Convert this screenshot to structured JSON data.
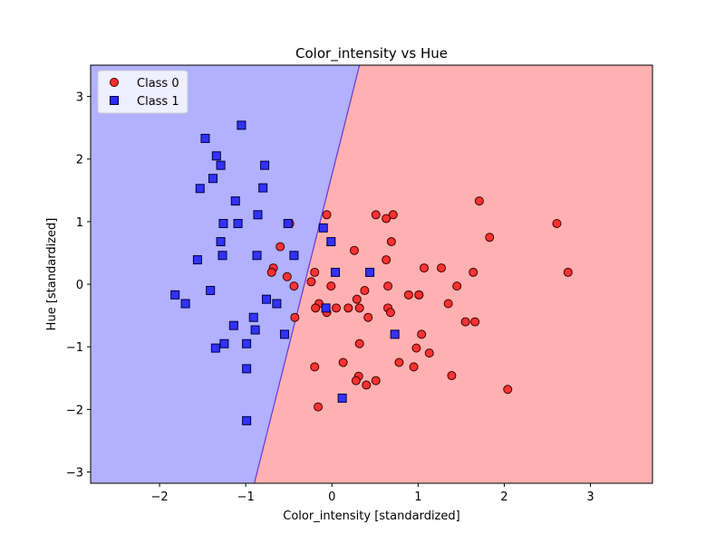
{
  "chart_data": {
    "type": "scatter",
    "title": "Color_intensity vs Hue",
    "xlabel": "Color_intensity [standardized]",
    "ylabel": "Hue [standardized]",
    "xlim": [
      -2.8,
      3.72
    ],
    "ylim": [
      -3.18,
      3.5
    ],
    "xticks": [
      -2,
      -1,
      0,
      1,
      2,
      3
    ],
    "yticks": [
      -3,
      -2,
      -1,
      0,
      1,
      2,
      3
    ],
    "xtick_labels": [
      "−2",
      "−1",
      "0",
      "1",
      "2",
      "3"
    ],
    "ytick_labels": [
      "−3",
      "−2",
      "−1",
      "0",
      "1",
      "2",
      "3"
    ],
    "grid": false,
    "legend_position": "upper-left",
    "decision_boundary": {
      "top": [
        0.32,
        3.5
      ],
      "bottom": [
        -0.9,
        -3.18
      ],
      "class1_region": "left",
      "class0_region": "right",
      "class0_color": "#ffb1b1",
      "class1_color": "#b1b1ff"
    },
    "series": [
      {
        "name": "Class 0",
        "marker": "circle",
        "color": "#ff2b2b",
        "edge_color": "#3a0000",
        "points": [
          [
            -0.06,
            1.11
          ],
          [
            0.51,
            1.11
          ],
          [
            0.63,
            1.05
          ],
          [
            0.71,
            1.11
          ],
          [
            1.71,
            1.33
          ],
          [
            2.61,
            0.97
          ],
          [
            1.83,
            0.75
          ],
          [
            0.69,
            0.68
          ],
          [
            -0.49,
            0.97
          ],
          [
            -0.6,
            0.6
          ],
          [
            0.26,
            0.54
          ],
          [
            0.63,
            0.39
          ],
          [
            1.07,
            0.26
          ],
          [
            1.27,
            0.26
          ],
          [
            1.64,
            0.19
          ],
          [
            2.74,
            0.19
          ],
          [
            -0.2,
            0.19
          ],
          [
            -0.68,
            0.26
          ],
          [
            -0.7,
            0.19
          ],
          [
            -0.52,
            0.12
          ],
          [
            -0.24,
            0.04
          ],
          [
            -0.44,
            -0.03
          ],
          [
            -0.01,
            -0.03
          ],
          [
            0.38,
            -0.1
          ],
          [
            0.65,
            -0.03
          ],
          [
            1.45,
            -0.03
          ],
          [
            0.89,
            -0.17
          ],
          [
            1.01,
            -0.17
          ],
          [
            1.01,
            -0.17
          ],
          [
            0.29,
            -0.24
          ],
          [
            1.35,
            -0.31
          ],
          [
            -0.15,
            -0.31
          ],
          [
            -0.19,
            -0.38
          ],
          [
            0.05,
            -0.38
          ],
          [
            0.19,
            -0.38
          ],
          [
            0.32,
            -0.38
          ],
          [
            0.65,
            -0.38
          ],
          [
            -0.06,
            -0.45
          ],
          [
            0.68,
            -0.45
          ],
          [
            0.42,
            -0.53
          ],
          [
            -0.43,
            -0.53
          ],
          [
            1.55,
            -0.6
          ],
          [
            1.66,
            -0.6
          ],
          [
            1.04,
            -0.8
          ],
          [
            0.32,
            -0.95
          ],
          [
            0.98,
            -1.02
          ],
          [
            1.13,
            -1.1
          ],
          [
            0.78,
            -1.25
          ],
          [
            0.13,
            -1.25
          ],
          [
            0.95,
            -1.32
          ],
          [
            -0.2,
            -1.32
          ],
          [
            1.39,
            -1.46
          ],
          [
            0.31,
            -1.47
          ],
          [
            0.28,
            -1.54
          ],
          [
            0.51,
            -1.54
          ],
          [
            0.4,
            -1.61
          ],
          [
            2.04,
            -1.68
          ],
          [
            -0.16,
            -1.96
          ]
        ]
      },
      {
        "name": "Class 1",
        "marker": "square",
        "color": "#2b2bff",
        "edge_color": "#00003a",
        "points": [
          [
            -1.05,
            2.54
          ],
          [
            -1.47,
            2.33
          ],
          [
            -1.34,
            2.05
          ],
          [
            -1.29,
            1.9
          ],
          [
            -0.78,
            1.9
          ],
          [
            -1.38,
            1.69
          ],
          [
            -1.53,
            1.53
          ],
          [
            -0.8,
            1.54
          ],
          [
            -1.12,
            1.33
          ],
          [
            -0.86,
            1.11
          ],
          [
            -1.26,
            0.97
          ],
          [
            -1.09,
            0.97
          ],
          [
            -0.51,
            0.97
          ],
          [
            -0.1,
            0.9
          ],
          [
            -1.29,
            0.68
          ],
          [
            -0.01,
            0.68
          ],
          [
            -1.27,
            0.46
          ],
          [
            -0.87,
            0.46
          ],
          [
            -0.44,
            0.46
          ],
          [
            -1.56,
            0.39
          ],
          [
            0.04,
            0.19
          ],
          [
            0.44,
            0.19
          ],
          [
            -1.82,
            -0.17
          ],
          [
            -1.41,
            -0.1
          ],
          [
            -0.76,
            -0.24
          ],
          [
            -1.7,
            -0.31
          ],
          [
            -0.64,
            -0.31
          ],
          [
            -0.07,
            -0.38
          ],
          [
            -0.91,
            -0.53
          ],
          [
            -1.14,
            -0.66
          ],
          [
            -0.89,
            -0.73
          ],
          [
            -0.55,
            -0.8
          ],
          [
            0.73,
            -0.8
          ],
          [
            -1.25,
            -0.95
          ],
          [
            -0.99,
            -0.95
          ],
          [
            -1.35,
            -1.02
          ],
          [
            -0.99,
            -1.35
          ],
          [
            0.12,
            -1.82
          ],
          [
            -0.99,
            -2.18
          ]
        ]
      }
    ]
  }
}
